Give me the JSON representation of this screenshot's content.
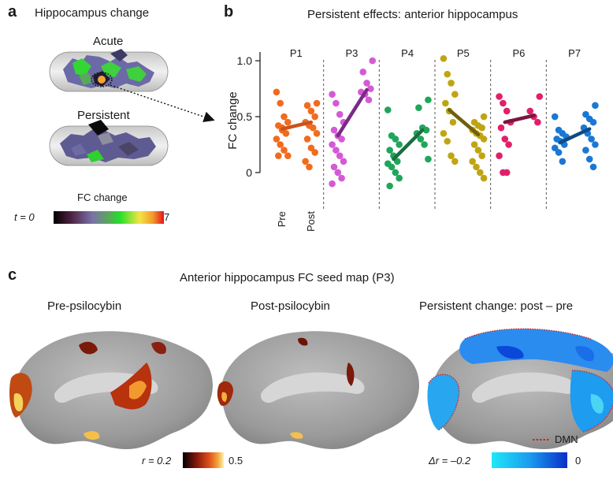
{
  "panel_a": {
    "letter": "a",
    "title": "Hippocampus change",
    "acute_label": "Acute",
    "persistent_label": "Persistent",
    "colorbar_title": "FC change",
    "colorbar_min": "t = 0",
    "colorbar_max": "7"
  },
  "panel_b": {
    "letter": "b",
    "title": "Persistent effects: anterior hippocampus"
  },
  "panel_c": {
    "letter": "c",
    "title": "Anterior hippocampus FC seed map (P3)",
    "pre_title": "Pre-psilocybin",
    "post_title": "Post-psilocybin",
    "change_title": "Persistent change: post – pre",
    "r_bar_min": "r = 0.2",
    "r_bar_max": "0.5",
    "dr_bar_min": "Δr = –0.2",
    "dr_bar_max": "0",
    "dmn_label": "DMN"
  },
  "chart_data": {
    "type": "scatter",
    "ylabel": "FC change",
    "yticks": [
      "0",
      "0.5",
      "1.0"
    ],
    "ylim": [
      -0.12,
      1.05
    ],
    "pre_label": "Pre",
    "post_label": "Post",
    "series": [
      {
        "name": "P1",
        "color": "#f26b1d",
        "line_color": "#c9531a",
        "pre_mean": 0.39,
        "post_mean": 0.45,
        "pre": [
          0.72,
          0.62,
          0.5,
          0.45,
          0.42,
          0.38,
          0.35,
          0.3,
          0.25,
          0.2,
          0.15,
          0.15,
          0.4
        ],
        "post": [
          0.62,
          0.6,
          0.55,
          0.5,
          0.45,
          0.42,
          0.4,
          0.35,
          0.3,
          0.22,
          0.18,
          0.1,
          0.05
        ]
      },
      {
        "name": "P3",
        "color": "#d45ad6",
        "line_color": "#7a2a86",
        "pre_mean": 0.33,
        "post_mean": 0.74,
        "pre": [
          0.7,
          0.62,
          0.52,
          0.45,
          0.38,
          0.33,
          0.3,
          0.25,
          0.2,
          0.15,
          0.1,
          0.05,
          0.0,
          -0.05,
          -0.1
        ],
        "post": [
          1.0,
          0.9,
          0.8,
          0.75,
          0.72,
          0.7,
          0.65
        ]
      },
      {
        "name": "P4",
        "color": "#1fa65a",
        "line_color": "#1b6e3f",
        "pre_mean": 0.12,
        "post_mean": 0.38,
        "pre": [
          0.56,
          0.33,
          0.3,
          0.25,
          0.2,
          0.15,
          0.1,
          0.08,
          0.05,
          0.0,
          -0.05,
          -0.12
        ],
        "post": [
          0.65,
          0.58,
          0.4,
          0.38,
          0.35,
          0.3,
          0.25,
          0.12
        ]
      },
      {
        "name": "P5",
        "color": "#c0a513",
        "line_color": "#6e6010",
        "pre_mean": 0.56,
        "post_mean": 0.34,
        "pre": [
          1.02,
          0.88,
          0.8,
          0.7,
          0.62,
          0.55,
          0.45,
          0.35,
          0.28,
          0.15,
          0.1
        ],
        "post": [
          0.5,
          0.45,
          0.42,
          0.4,
          0.38,
          0.35,
          0.33,
          0.3,
          0.25,
          0.2,
          0.15,
          0.1,
          0.05,
          0.0,
          -0.05
        ]
      },
      {
        "name": "P6",
        "color": "#e0206a",
        "line_color": "#7a1540",
        "pre_mean": 0.45,
        "post_mean": 0.51,
        "pre": [
          0.68,
          0.62,
          0.55,
          0.45,
          0.4,
          0.3,
          0.25,
          0.15,
          0.0,
          0.0
        ],
        "post": [
          0.68,
          0.55,
          0.5,
          0.45
        ]
      },
      {
        "name": "P7",
        "color": "#1a78d4",
        "line_color": "#0d4a86",
        "pre_mean": 0.27,
        "post_mean": 0.39,
        "pre": [
          0.5,
          0.38,
          0.35,
          0.32,
          0.3,
          0.28,
          0.25,
          0.22,
          0.18,
          0.1
        ],
        "post": [
          0.6,
          0.52,
          0.48,
          0.45,
          0.4,
          0.35,
          0.3,
          0.25,
          0.2,
          0.12,
          0.05
        ]
      }
    ]
  }
}
